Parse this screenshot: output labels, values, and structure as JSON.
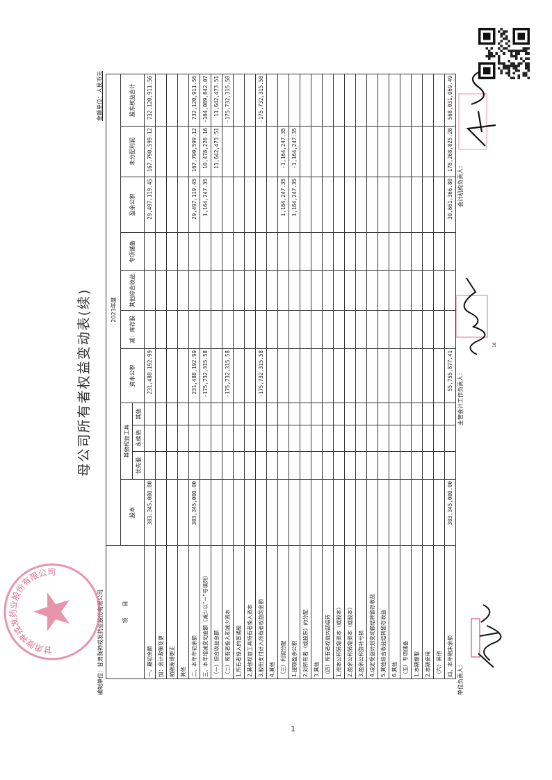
{
  "document": {
    "title": "母公司所有者权益变动表(续)",
    "unit": "金额单位：人民币元",
    "maker": "编制单位：甘肃陇神戎发药业股份有限公司",
    "year_header": "2023年度",
    "page_inner": "18",
    "page_footer": "1"
  },
  "table": {
    "headers": {
      "item": "项　　目",
      "share_capital": "股本",
      "other_equity_instruments": "其他权益工具",
      "preferred": "优先股",
      "perpetual": "永续债",
      "other": "其他",
      "capital_reserve": "资本公积",
      "treasury": "减：库存股",
      "oci": "其他综合收益",
      "special_reserve": "专项储备",
      "surplus_reserve": "盈余公积",
      "retained": "未分配利润",
      "total": "股东权益合计"
    },
    "rows": [
      {
        "label": "一、期初余额",
        "cells": [
          "303,345,000.00",
          "",
          "",
          "",
          "231,488,192.99",
          "",
          "",
          "",
          "29,497,119.45",
          "167,790,599.12",
          "732,120,911.56"
        ]
      },
      {
        "label": "加：会计政策变更",
        "cells": [
          "",
          "",
          "",
          "",
          "",
          "",
          "",
          "",
          "",
          "",
          ""
        ]
      },
      {
        "label": "前期差错更正",
        "cells": [
          "",
          "",
          "",
          "",
          "",
          "",
          "",
          "",
          "",
          "",
          ""
        ]
      },
      {
        "label": "其他",
        "cells": [
          "",
          "",
          "",
          "",
          "",
          "",
          "",
          "",
          "",
          "",
          ""
        ]
      },
      {
        "label": "二、本年年初余额",
        "cells": [
          "303,345,000.00",
          "",
          "",
          "",
          "231,488,192.99",
          "",
          "",
          "",
          "29,497,119.45",
          "167,790,599.12",
          "732,120,911.56"
        ]
      },
      {
        "label": "三、本年增减变动金额（减少以“－”号填列）",
        "cells": [
          "",
          "",
          "",
          "",
          "-175,732,315.58",
          "",
          "",
          "",
          "1,164,247.35",
          "10,478,226.16",
          "-164,089,842.07"
        ]
      },
      {
        "label": "（一）综合收益总额",
        "cells": [
          "",
          "",
          "",
          "",
          "",
          "",
          "",
          "",
          "",
          "11,642,473.51",
          "11,642,473.51"
        ]
      },
      {
        "label": "（二）所有者投入和减少资本",
        "cells": [
          "",
          "",
          "",
          "",
          "-175,732,315.58",
          "",
          "",
          "",
          "",
          "",
          "-175,732,315.58"
        ]
      },
      {
        "label": "1.所有者投入的普通股",
        "cells": [
          "",
          "",
          "",
          "",
          "",
          "",
          "",
          "",
          "",
          "",
          ""
        ]
      },
      {
        "label": "2.其他权益工具持有者投入资本",
        "cells": [
          "",
          "",
          "",
          "",
          "",
          "",
          "",
          "",
          "",
          "",
          ""
        ]
      },
      {
        "label": "3.股份支付计入所有者权益的金额",
        "cells": [
          "",
          "",
          "",
          "",
          "-175,732,315.58",
          "",
          "",
          "",
          "",
          "",
          "-175,732,315.58"
        ]
      },
      {
        "label": "4.其他",
        "cells": [
          "",
          "",
          "",
          "",
          "",
          "",
          "",
          "",
          "",
          "",
          ""
        ]
      },
      {
        "label": "（三）利润分配",
        "cells": [
          "",
          "",
          "",
          "",
          "",
          "",
          "",
          "",
          "1,164,247.35",
          "-1,164,247.35",
          ""
        ]
      },
      {
        "label": "1.提取盈余公积",
        "cells": [
          "",
          "",
          "",
          "",
          "",
          "",
          "",
          "",
          "1,164,247.35",
          "-1,164,247.35",
          ""
        ]
      },
      {
        "label": "2.对所有者（或股东）的分配",
        "cells": [
          "",
          "",
          "",
          "",
          "",
          "",
          "",
          "",
          "",
          "",
          ""
        ]
      },
      {
        "label": "3.其他",
        "cells": [
          "",
          "",
          "",
          "",
          "",
          "",
          "",
          "",
          "",
          "",
          ""
        ]
      },
      {
        "label": "（四）所有者权益内部结转",
        "cells": [
          "",
          "",
          "",
          "",
          "",
          "",
          "",
          "",
          "",
          "",
          ""
        ]
      },
      {
        "label": "1.资本公积转增资本（或股本）",
        "cells": [
          "",
          "",
          "",
          "",
          "",
          "",
          "",
          "",
          "",
          "",
          ""
        ]
      },
      {
        "label": "2.盈余公积转增资本（或股本）",
        "cells": [
          "",
          "",
          "",
          "",
          "",
          "",
          "",
          "",
          "",
          "",
          ""
        ]
      },
      {
        "label": "3.盈余公积弥补亏损",
        "cells": [
          "",
          "",
          "",
          "",
          "",
          "",
          "",
          "",
          "",
          "",
          ""
        ]
      },
      {
        "label": "4.设定受益计划变动额结转留存收益",
        "cells": [
          "",
          "",
          "",
          "",
          "",
          "",
          "",
          "",
          "",
          "",
          ""
        ]
      },
      {
        "label": "5.其他综合收益结转留存收益",
        "cells": [
          "",
          "",
          "",
          "",
          "",
          "",
          "",
          "",
          "",
          "",
          ""
        ]
      },
      {
        "label": "6.其他",
        "cells": [
          "",
          "",
          "",
          "",
          "",
          "",
          "",
          "",
          "",
          "",
          ""
        ]
      },
      {
        "label": "（五）专项储备",
        "cells": [
          "",
          "",
          "",
          "",
          "",
          "",
          "",
          "",
          "",
          "",
          ""
        ]
      },
      {
        "label": "1.本期提取",
        "cells": [
          "",
          "",
          "",
          "",
          "",
          "",
          "",
          "",
          "",
          "",
          ""
        ]
      },
      {
        "label": "2.本期使用",
        "cells": [
          "",
          "",
          "",
          "",
          "",
          "",
          "",
          "",
          "",
          "",
          ""
        ]
      },
      {
        "label": "（六）其他",
        "cells": [
          "",
          "",
          "",
          "",
          "",
          "",
          "",
          "",
          "",
          "",
          ""
        ]
      },
      {
        "label": "四、本年期末余额",
        "cells": [
          "303,345,000.00",
          "",
          "",
          "",
          "55,755,877.41",
          "",
          "",
          "",
          "30,661,366.80",
          "178,268,825.28",
          "568,031,069.49"
        ]
      }
    ]
  },
  "signatures": {
    "legal_rep": "单位负责人：",
    "accounting_head": "主管会计工作负责人：",
    "accounting_dept_head": "会计机构负责人："
  },
  "stamp": {
    "text": "甘肃陇神戎发药业股份有限公司",
    "color": "#e0708f"
  },
  "colors": {
    "ink": "#222222",
    "stamp": "#e0708f",
    "signature": "#111111"
  }
}
